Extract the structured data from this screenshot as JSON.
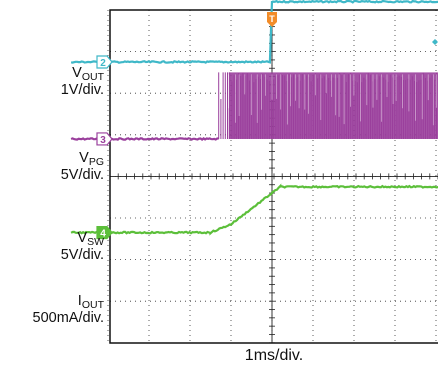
{
  "chart_data": {
    "type": "line",
    "timebase": "1ms/div.",
    "grid": true,
    "trigger_marker": "T",
    "horizontal_divisions": 10,
    "vertical_divisions": 8,
    "colors": {
      "ch1": "#1f4fa8",
      "ch2": "#3fb8c8",
      "ch3": "#9a3f9c",
      "ch4": "#5cbf3a",
      "trigger": "#f28c28",
      "grid": "#333333"
    },
    "channels": [
      {
        "id": "1",
        "symbol": "V",
        "subscript": "OUT",
        "scale": "1V/div.",
        "color": "#1f4fa8",
        "baseline_div": 5.0,
        "points": [
          [
            -4.9,
            0
          ],
          [
            -1.2,
            0
          ],
          [
            -0.8,
            0.15
          ],
          [
            0,
            1.6
          ],
          [
            0.2,
            1.85
          ],
          [
            5.0,
            1.85
          ]
        ]
      },
      {
        "id": "2",
        "symbol": "V",
        "subscript": "PG",
        "scale": "5V/div.",
        "color": "#3fb8c8",
        "baseline_div": 2.75,
        "points": [
          [
            -4.9,
            0
          ],
          [
            -0.05,
            0
          ],
          [
            0,
            1.45
          ],
          [
            5.0,
            1.45
          ]
        ]
      },
      {
        "id": "3",
        "symbol": "V",
        "subscript": "SW",
        "scale": "5V/div.",
        "color": "#9a3f9c",
        "baseline_div": 0.9,
        "switching_start": -1.3,
        "switching_high": 1.6,
        "points": [
          [
            -4.9,
            0
          ],
          [
            -1.3,
            0
          ]
        ]
      },
      {
        "id": "4",
        "symbol": "I",
        "subscript": "OUT",
        "scale": "500mA/div.",
        "color": "#5cbf3a",
        "baseline_div": -1.35,
        "points": [
          [
            -4.9,
            0
          ],
          [
            -1.5,
            0
          ],
          [
            -1.0,
            0.2
          ],
          [
            0,
            0.95
          ],
          [
            0.2,
            1.1
          ],
          [
            5.0,
            1.1
          ]
        ]
      }
    ]
  }
}
